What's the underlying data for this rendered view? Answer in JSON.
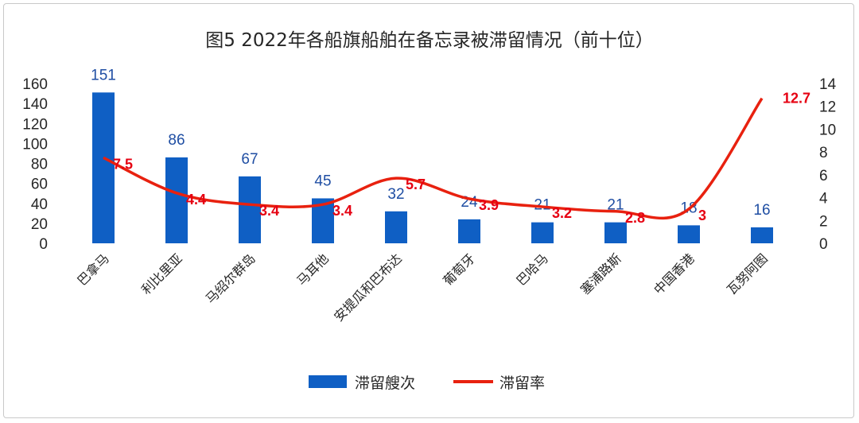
{
  "chart_data": {
    "type": "bar",
    "title": "图5  2022年各船旗船舶在备忘录被滞留情况（前十位）",
    "categories": [
      "巴拿马",
      "利比里亚",
      "马绍尔群岛",
      "马耳他",
      "安提瓜和巴布达",
      "葡萄牙",
      "巴哈马",
      "塞浦路斯",
      "中国香港",
      "瓦努阿图"
    ],
    "series": [
      {
        "name": "滞留艘次",
        "type": "bar",
        "axis": "left",
        "color": "#0f5fc4",
        "values": [
          151,
          86,
          67,
          45,
          32,
          24,
          21,
          21,
          18,
          16
        ],
        "labels": [
          "151",
          "86",
          "67",
          "45",
          "32",
          "24",
          "21",
          "21",
          "18",
          "16"
        ]
      },
      {
        "name": "滞留率",
        "type": "line",
        "axis": "right",
        "color": "#e8210f",
        "values": [
          7.5,
          4.4,
          3.4,
          3.4,
          5.7,
          3.9,
          3.2,
          2.8,
          3,
          12.7
        ],
        "labels": [
          "7.5",
          "4.4",
          "3.4",
          "3.4",
          "5.7",
          "3.9",
          "3.2",
          "2.8",
          "3",
          "12.7"
        ]
      }
    ],
    "y_left": {
      "min": 0,
      "max": 160,
      "ticks": [
        "0",
        "20",
        "40",
        "60",
        "80",
        "100",
        "120",
        "140",
        "160"
      ]
    },
    "y_right": {
      "min": 0,
      "max": 14,
      "ticks": [
        "0",
        "2",
        "4",
        "6",
        "8",
        "10",
        "12",
        "14"
      ]
    },
    "grid": false,
    "legend_position": "bottom"
  }
}
